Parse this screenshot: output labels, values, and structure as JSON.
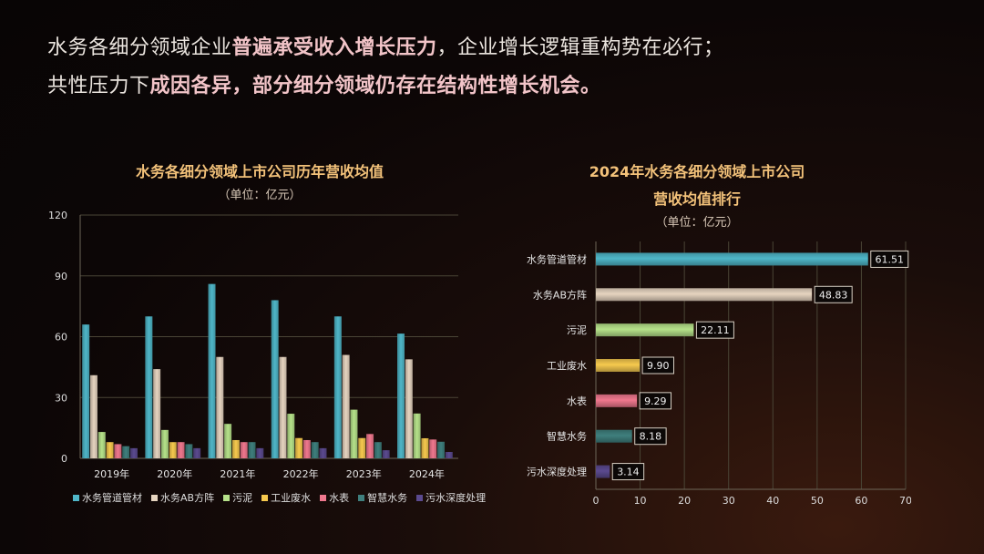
{
  "headline": {
    "line1": [
      {
        "text": "水务各细分领域企业",
        "hl": false
      },
      {
        "text": "普遍承受收入增长压力",
        "hl": true
      },
      {
        "text": "，企业增长逻辑重构势在必行；",
        "hl": false
      }
    ],
    "line2": [
      {
        "text": "共性压力下",
        "hl": false
      },
      {
        "text": "成因各异，部分细分领域仍存在结构性增长机会。",
        "hl": true
      }
    ]
  },
  "colors": {
    "series": [
      "#4fb6c8",
      "#e6d4c0",
      "#b6e28a",
      "#f6c94e",
      "#f0788e",
      "#3f7f7d",
      "#5b4a8f"
    ],
    "title": "#f3c27a"
  },
  "chart_data": [
    {
      "type": "bar",
      "title": "水务各细分领域上市公司历年营收均值",
      "subtitle": "（单位：亿元）",
      "categories": [
        "2019年",
        "2020年",
        "2021年",
        "2022年",
        "2023年",
        "2024年"
      ],
      "ylim": [
        0,
        120
      ],
      "yticks": [
        0,
        30,
        60,
        90,
        120
      ],
      "grid": true,
      "legend_position": "bottom",
      "series": [
        {
          "name": "水务管道管材",
          "values": [
            66,
            70,
            86,
            78,
            70,
            61.51
          ]
        },
        {
          "name": "水务AB方阵",
          "values": [
            41,
            44,
            50,
            50,
            51,
            48.83
          ]
        },
        {
          "name": "污泥",
          "values": [
            13,
            14,
            17,
            22,
            24,
            22.11
          ]
        },
        {
          "name": "工业废水",
          "values": [
            8,
            8,
            9,
            10,
            10,
            9.9
          ]
        },
        {
          "name": "水表",
          "values": [
            7,
            8,
            8,
            9,
            12,
            9.29
          ]
        },
        {
          "name": "智慧水务",
          "values": [
            6,
            7,
            8,
            8,
            8,
            8.18
          ]
        },
        {
          "name": "污水深度处理",
          "values": [
            5,
            5,
            5,
            5,
            4,
            3.14
          ]
        }
      ]
    },
    {
      "type": "bar",
      "orientation": "horizontal",
      "title": [
        "2024年水务各细分领域上市公司",
        "营收均值排行"
      ],
      "subtitle": "（单位：亿元）",
      "categories": [
        "水务管道管材",
        "水务AB方阵",
        "污泥",
        "工业废水",
        "水表",
        "智慧水务",
        "污水深度处理"
      ],
      "values": [
        61.51,
        48.83,
        22.11,
        9.9,
        9.29,
        8.18,
        3.14
      ],
      "value_labels": [
        "61.51",
        "48.83",
        "22.11",
        "9.90",
        "9.29",
        "8.18",
        "3.14"
      ],
      "xlim": [
        0,
        70
      ],
      "xticks": [
        0,
        10,
        20,
        30,
        40,
        50,
        60,
        70
      ],
      "grid": true
    }
  ]
}
